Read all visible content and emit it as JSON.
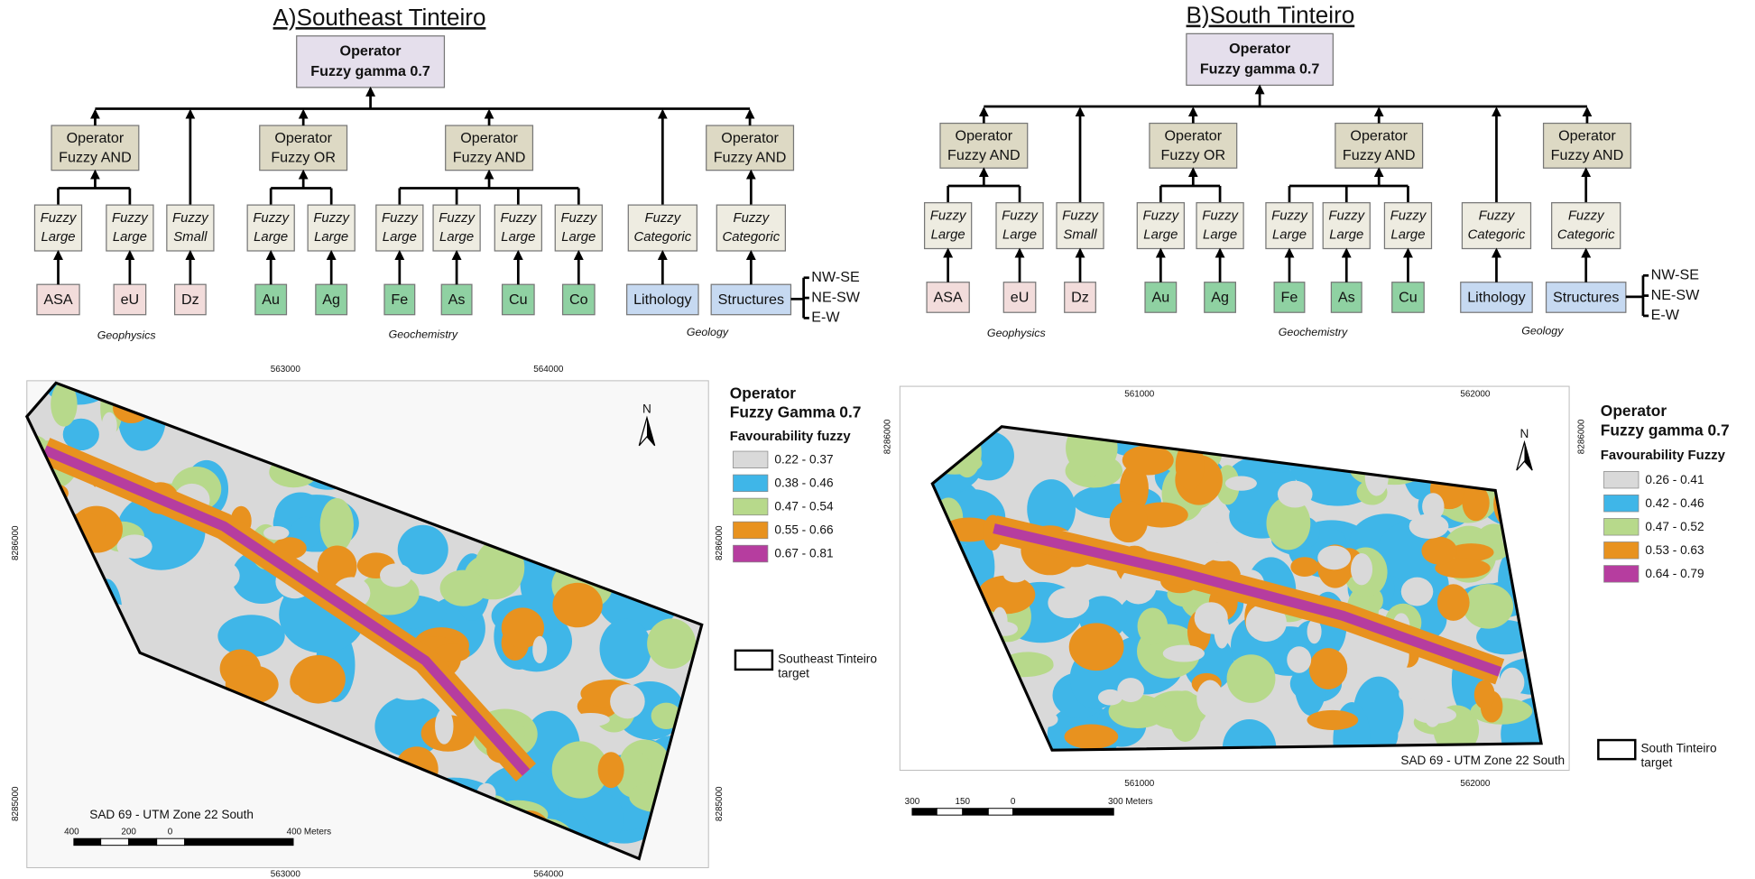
{
  "panels": [
    {
      "title": "A)Southeast Tinteiro",
      "operator": [
        "Operator",
        "Fuzzy gamma 0.7"
      ],
      "branches": [
        {
          "operator": [
            "Operator",
            "Fuzzy AND"
          ],
          "inputs": [
            {
              "fuzzy": [
                "Fuzzy",
                "Large"
              ],
              "source": "ASA",
              "color": "#f2dcdb"
            },
            {
              "fuzzy": [
                "Fuzzy",
                "Large"
              ],
              "source": "eU",
              "color": "#f2dcdb"
            }
          ]
        },
        {
          "inputs": [
            {
              "fuzzy": [
                "Fuzzy",
                "Small"
              ],
              "source": "Dz",
              "color": "#f2dcdb"
            }
          ]
        },
        {
          "operator": [
            "Operator",
            "Fuzzy OR"
          ],
          "inputs": [
            {
              "fuzzy": [
                "Fuzzy",
                "Large"
              ],
              "source": "Au",
              "color": "#8fd1a2"
            },
            {
              "fuzzy": [
                "Fuzzy",
                "Large"
              ],
              "source": "Ag",
              "color": "#8fd1a2"
            }
          ]
        },
        {
          "operator": [
            "Operator",
            "Fuzzy AND"
          ],
          "inputs": [
            {
              "fuzzy": [
                "Fuzzy",
                "Large"
              ],
              "source": "Fe",
              "color": "#8fd1a2"
            },
            {
              "fuzzy": [
                "Fuzzy",
                "Large"
              ],
              "source": "As",
              "color": "#8fd1a2"
            },
            {
              "fuzzy": [
                "Fuzzy",
                "Large"
              ],
              "source": "Cu",
              "color": "#8fd1a2"
            },
            {
              "fuzzy": [
                "Fuzzy",
                "Large"
              ],
              "source": "Co",
              "color": "#8fd1a2"
            }
          ]
        },
        {
          "inputs": [
            {
              "fuzzy": [
                "Fuzzy",
                "Categoric"
              ],
              "source": "Lithology",
              "color": "#c6d9f1"
            }
          ]
        },
        {
          "operator": [
            "Operator",
            "Fuzzy AND"
          ],
          "inputs": [
            {
              "fuzzy": [
                "Fuzzy",
                "Categoric"
              ],
              "source": "Structures",
              "color": "#c6d9f1",
              "directions": [
                "NW-SE",
                "NE-SW",
                "E-W"
              ]
            }
          ]
        }
      ],
      "groups": [
        "Geophysics",
        "Geochemistry",
        "Geology"
      ],
      "map": {
        "legend_title": [
          "Operator",
          "Fuzzy Gamma 0.7"
        ],
        "legend_subtitle": "Favourability fuzzy",
        "classes": [
          {
            "label": "0.22 - 0.37",
            "color": "#d9d9d9"
          },
          {
            "label": "0.38 - 0.46",
            "color": "#3fb6e8"
          },
          {
            "label": "0.47 - 0.54",
            "color": "#b7d98b"
          },
          {
            "label": "0.55 - 0.66",
            "color": "#e8921f"
          },
          {
            "label": "0.67 - 0.81",
            "color": "#b63d9f"
          }
        ],
        "target": [
          "Southeast Tinteiro",
          "target"
        ],
        "x_labels": [
          "563000",
          "564000"
        ],
        "y_labels": [
          "8286000",
          "8285000"
        ],
        "north": "N",
        "projection": "SAD 69 - UTM Zone 22 South",
        "scale_labels": [
          "400",
          "200",
          "0",
          "400 Meters"
        ]
      }
    },
    {
      "title": "B)South Tinteiro",
      "operator": [
        "Operator",
        "Fuzzy gamma 0.7"
      ],
      "branches": [
        {
          "operator": [
            "Operator",
            "Fuzzy AND"
          ],
          "inputs": [
            {
              "fuzzy": [
                "Fuzzy",
                "Large"
              ],
              "source": "ASA",
              "color": "#f2dcdb"
            },
            {
              "fuzzy": [
                "Fuzzy",
                "Large"
              ],
              "source": "eU",
              "color": "#f2dcdb"
            }
          ]
        },
        {
          "inputs": [
            {
              "fuzzy": [
                "Fuzzy",
                "Small"
              ],
              "source": "Dz",
              "color": "#f2dcdb"
            }
          ]
        },
        {
          "operator": [
            "Operator",
            "Fuzzy OR"
          ],
          "inputs": [
            {
              "fuzzy": [
                "Fuzzy",
                "Large"
              ],
              "source": "Au",
              "color": "#8fd1a2"
            },
            {
              "fuzzy": [
                "Fuzzy",
                "Large"
              ],
              "source": "Ag",
              "color": "#8fd1a2"
            }
          ]
        },
        {
          "operator": [
            "Operator",
            "Fuzzy AND"
          ],
          "inputs": [
            {
              "fuzzy": [
                "Fuzzy",
                "Large"
              ],
              "source": "Fe",
              "color": "#8fd1a2"
            },
            {
              "fuzzy": [
                "Fuzzy",
                "Large"
              ],
              "source": "As",
              "color": "#8fd1a2"
            },
            {
              "fuzzy": [
                "Fuzzy",
                "Large"
              ],
              "source": "Cu",
              "color": "#8fd1a2"
            }
          ]
        },
        {
          "inputs": [
            {
              "fuzzy": [
                "Fuzzy",
                "Categoric"
              ],
              "source": "Lithology",
              "color": "#c6d9f1"
            }
          ]
        },
        {
          "operator": [
            "Operator",
            "Fuzzy AND"
          ],
          "inputs": [
            {
              "fuzzy": [
                "Fuzzy",
                "Categoric"
              ],
              "source": "Structures",
              "color": "#c6d9f1",
              "directions": [
                "NW-SE",
                "NE-SW",
                "E-W"
              ]
            }
          ]
        }
      ],
      "groups": [
        "Geophysics",
        "Geochemistry",
        "Geology"
      ],
      "map": {
        "legend_title": [
          "Operator",
          "Fuzzy gamma 0.7"
        ],
        "legend_subtitle": "Favourability Fuzzy",
        "classes": [
          {
            "label": "0.26 - 0.41",
            "color": "#d9d9d9"
          },
          {
            "label": "0.42 - 0.46",
            "color": "#3fb6e8"
          },
          {
            "label": "0.47 - 0.52",
            "color": "#b7d98b"
          },
          {
            "label": "0.53 - 0.63",
            "color": "#e8921f"
          },
          {
            "label": "0.64 - 0.79",
            "color": "#b63d9f"
          }
        ],
        "target": [
          "South Tinteiro",
          "target"
        ],
        "x_labels": [
          "561000",
          "562000"
        ],
        "y_labels": [
          "8286000"
        ],
        "north": "N",
        "projection": "SAD 69 - UTM Zone 22 South",
        "scale_labels": [
          "300",
          "150",
          "0",
          "300 Meters"
        ]
      }
    }
  ]
}
